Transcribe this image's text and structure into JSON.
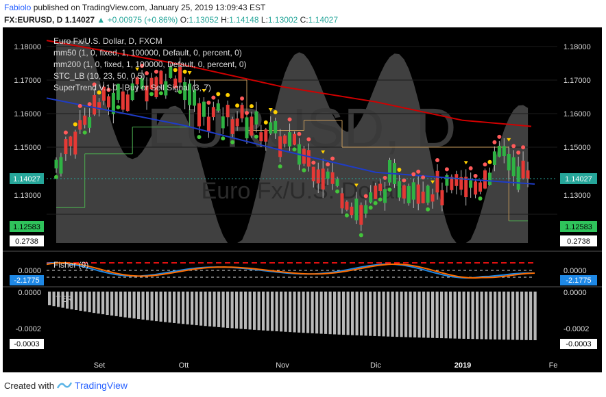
{
  "header": {
    "author": "Fabiolo",
    "published_text": "published on TradingView.com, January 25, 2019 13:09:43 EST",
    "symbol": "FX:EURUSD, D",
    "last": "1.14027",
    "change": "+0.00975 (+0.86%)",
    "o_label": "O:",
    "o_value": "1.13052",
    "h_label": "H:",
    "h_value": "1.14148",
    "l_label": "L:",
    "l_value": "1.13002",
    "c_label": "C:",
    "c_value": "1.14027"
  },
  "legend": {
    "title": "Euro Fx/U.S. Dollar, D, FXCM",
    "lines": [
      "mm50 (1, 0, fixed, 1, 100000, Default, 0, percent, 0)",
      "mm200 (1, 0, fixed, 1, 100000, Default, 0, percent, 0)",
      "STC_LB (10, 23, 50, 0.5)",
      "SuperTrend V.1.0 - Buy or Sell Signal (3, 7)"
    ]
  },
  "watermark": {
    "main": "EURUSD, D",
    "sub": "Euro Fx/U.S. Dollar"
  },
  "colors": {
    "up": "#26a69a",
    "down": "#ef5350",
    "green_candle": "#2fb344",
    "red_candle": "#e53935",
    "mm50": "#1e3cc8",
    "mm200": "#d00000",
    "pane_bg": "#000000",
    "badge_price": "#26a69a",
    "badge_fisher": "#1e88e5"
  },
  "price_pane": {
    "ticks": [
      "1.18000",
      "1.17000",
      "1.16000",
      "1.15000",
      "1.13000"
    ],
    "badges": {
      "price": "1.14027",
      "supertrend": "1.12583",
      "stc": "0.2738"
    }
  },
  "fisher_pane": {
    "label": "Fisher (9)",
    "ticks": [
      "0.0000"
    ],
    "badge": "-2.1775"
  },
  "iter_pane": {
    "label": "ITER",
    "ticks": [
      "0.0000",
      "-0.0002"
    ],
    "badge": "-0.0003"
  },
  "x_axis": [
    "Set",
    "Ott",
    "Nov",
    "Dic",
    "2019",
    "Fe"
  ],
  "footer": {
    "created_with": "Created with",
    "brand": "TradingView"
  },
  "chart_data": {
    "type": "line",
    "title": "Euro Fx/U.S. Dollar, D, FXCM",
    "x": [
      "Set",
      "Ott",
      "Nov",
      "Dic",
      "2019"
    ],
    "ylim": [
      1.12,
      1.185
    ],
    "series": [
      {
        "name": "mm50",
        "values": [
          1.1615,
          1.1565,
          1.149,
          1.1425,
          1.1405
        ]
      },
      {
        "name": "mm200",
        "values": [
          1.179,
          1.1745,
          1.168,
          1.1635,
          1.158
        ]
      }
    ],
    "last_close": 1.14027
  }
}
